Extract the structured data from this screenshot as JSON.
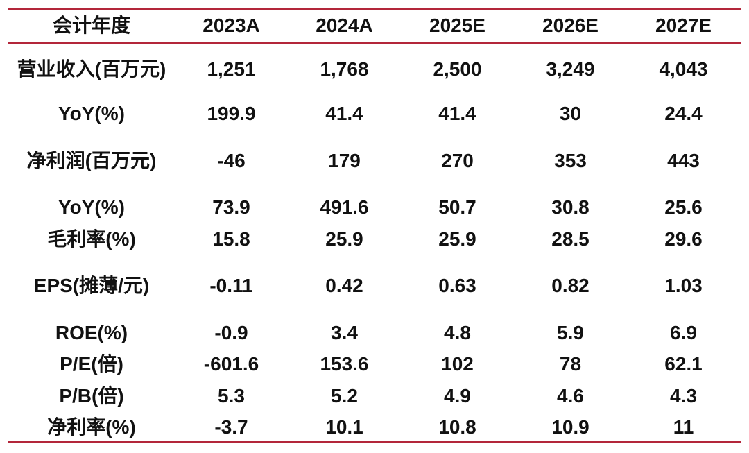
{
  "table": {
    "header": [
      "会计年度",
      "2023A",
      "2024A",
      "2025E",
      "2026E",
      "2027E"
    ],
    "rows": [
      {
        "label": "营业收入(百万元)",
        "values": [
          "1,251",
          "1,768",
          "2,500",
          "3,249",
          "4,043"
        ]
      },
      {
        "label": "YoY(%)",
        "values": [
          "199.9",
          "41.4",
          "41.4",
          "30",
          "24.4"
        ]
      },
      {
        "label": "净利润(百万元)",
        "values": [
          "-46",
          "179",
          "270",
          "353",
          "443"
        ]
      },
      {
        "label": "YoY(%)",
        "values": [
          "73.9",
          "491.6",
          "50.7",
          "30.8",
          "25.6"
        ]
      },
      {
        "label": "毛利率(%)",
        "values": [
          "15.8",
          "25.9",
          "25.9",
          "28.5",
          "29.6"
        ]
      },
      {
        "label": "EPS(摊薄/元)",
        "values": [
          "-0.11",
          "0.42",
          "0.63",
          "0.82",
          "1.03"
        ]
      },
      {
        "label": "ROE(%)",
        "values": [
          "-0.9",
          "3.4",
          "4.8",
          "5.9",
          "6.9"
        ]
      },
      {
        "label": "P/E(倍)",
        "values": [
          "-601.6",
          "153.6",
          "102",
          "78",
          "62.1"
        ]
      },
      {
        "label": "P/B(倍)",
        "values": [
          "5.3",
          "5.2",
          "4.9",
          "4.6",
          "4.3"
        ]
      },
      {
        "label": "净利率(%)",
        "values": [
          "-3.7",
          "10.1",
          "10.8",
          "10.9",
          "11"
        ]
      }
    ]
  },
  "colors": {
    "rule": "#b3263a",
    "text": "#111111"
  }
}
